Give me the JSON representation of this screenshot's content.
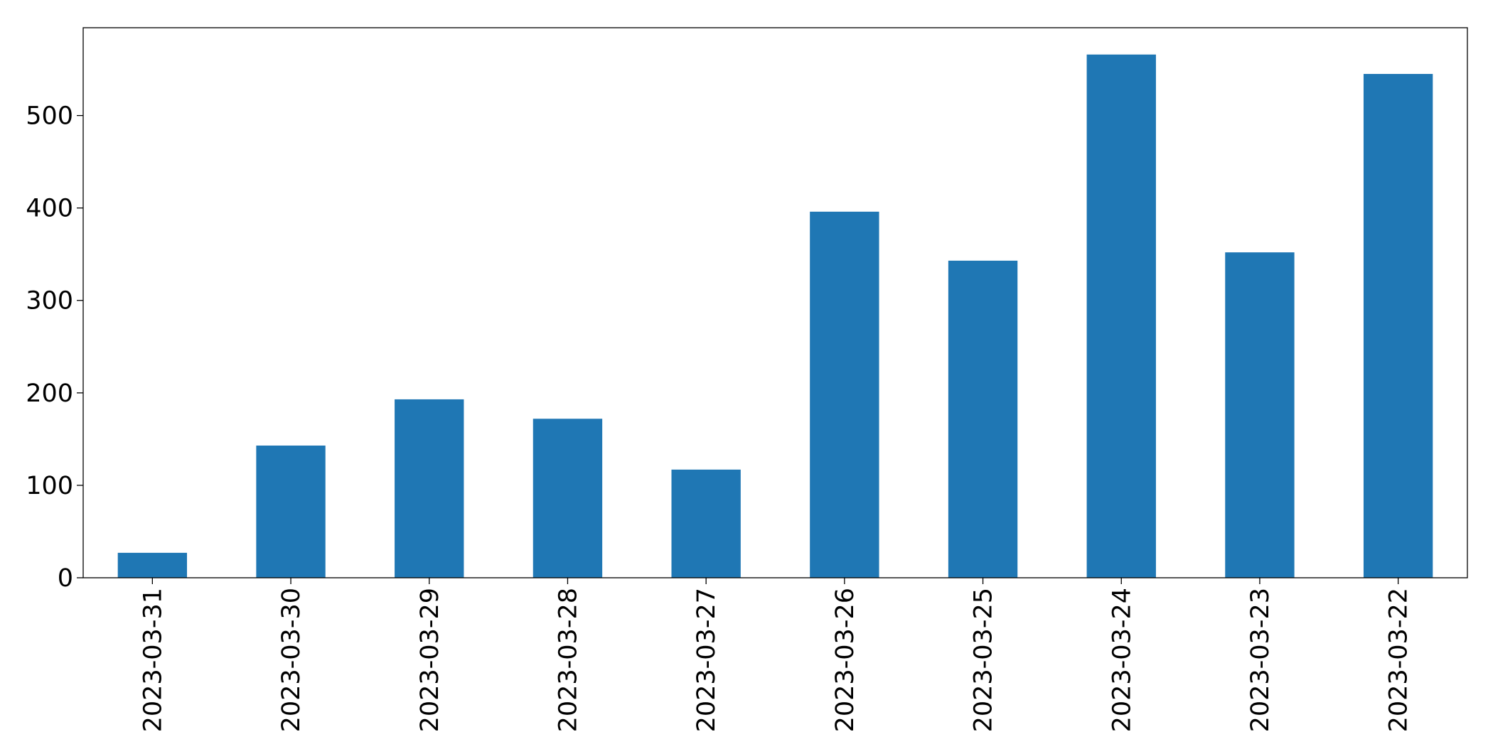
{
  "chart_data": {
    "type": "bar",
    "categories": [
      "2023-03-31",
      "2023-03-30",
      "2023-03-29",
      "2023-03-28",
      "2023-03-27",
      "2023-03-26",
      "2023-03-25",
      "2023-03-24",
      "2023-03-23",
      "2023-03-22"
    ],
    "values": [
      27,
      143,
      193,
      172,
      117,
      396,
      343,
      566,
      352,
      545
    ],
    "color": "#1f77b4",
    "ylim": [
      0,
      595
    ],
    "yticks": [
      0,
      100,
      200,
      300,
      400,
      500
    ],
    "grid": false
  }
}
